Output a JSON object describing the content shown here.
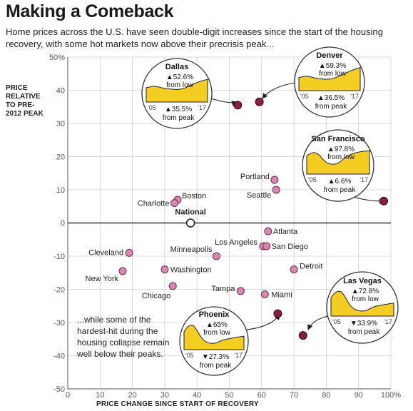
{
  "header": {
    "title": "Making a Comeback",
    "subtitle": "Home prices across the U.S. have seen double-digit increases since the start of the housing recovery, with some hot markets now above their precrisis peak..."
  },
  "note": "...while some of the hardest-hit during the housing collapse remain well below their peaks.",
  "colors": {
    "marker_pink": "#d889b0",
    "marker_dark": "#8a1f3f",
    "area_yellow": "#f3cd21",
    "grid": "#cfcfcf"
  },
  "chart_data": {
    "type": "scatter",
    "xlabel": "PRICE CHANGE SINCE START OF RECOVERY",
    "ylabel": "PRICE RELATIVE TO PRE-2012 PEAK",
    "xlim": [
      0,
      100
    ],
    "ylim": [
      -50,
      50
    ],
    "x_ticks": [
      "0",
      "10",
      "20",
      "30",
      "40",
      "50",
      "60",
      "70",
      "80",
      "90",
      "100%"
    ],
    "y_ticks": [
      "50%",
      "40",
      "30",
      "20",
      "10",
      "0",
      "-10",
      "-20",
      "-30",
      "-40",
      "-50"
    ],
    "grid": true,
    "points": [
      {
        "label": "National",
        "x": 38,
        "y": 0,
        "style": "national"
      },
      {
        "label": "Boston",
        "x": 34,
        "y": 7,
        "style": "pink"
      },
      {
        "label": "Charlotte",
        "x": 33,
        "y": 6,
        "style": "pink"
      },
      {
        "label": "Portland",
        "x": 64,
        "y": 13,
        "style": "pink"
      },
      {
        "label": "Seattle",
        "x": 64.5,
        "y": 10,
        "style": "pink"
      },
      {
        "label": "Atlanta",
        "x": 62,
        "y": -2.5,
        "style": "pink"
      },
      {
        "label": "Los Angeles",
        "x": 60.5,
        "y": -7,
        "style": "pink"
      },
      {
        "label": "San Diego",
        "x": 61.5,
        "y": -7,
        "style": "pink"
      },
      {
        "label": "Cleveland",
        "x": 19,
        "y": -9,
        "style": "pink"
      },
      {
        "label": "Minneapolis",
        "x": 46,
        "y": -10,
        "style": "pink"
      },
      {
        "label": "Washington",
        "x": 30,
        "y": -14,
        "style": "pink"
      },
      {
        "label": "New York",
        "x": 17,
        "y": -14.5,
        "style": "pink"
      },
      {
        "label": "Detroit",
        "x": 70,
        "y": -14,
        "style": "pink"
      },
      {
        "label": "Chicago",
        "x": 32.5,
        "y": -19,
        "style": "pink"
      },
      {
        "label": "Tampa",
        "x": 53.5,
        "y": -20.5,
        "style": "pink"
      },
      {
        "label": "Miami",
        "x": 61,
        "y": -21.5,
        "style": "pink"
      },
      {
        "label": "Dallas",
        "x": 52.6,
        "y": 35.5,
        "style": "dark"
      },
      {
        "label": "Denver",
        "x": 59.3,
        "y": 36.5,
        "style": "dark"
      },
      {
        "label": "San Francisco",
        "x": 97.8,
        "y": 6.6,
        "style": "dark"
      },
      {
        "label": "Phoenix",
        "x": 65,
        "y": -27.3,
        "style": "dark"
      },
      {
        "label": "Las Vegas",
        "x": 72.8,
        "y": -33.9,
        "style": "dark"
      }
    ],
    "insets": [
      {
        "city": "Dallas",
        "from_low": "▲52.6%",
        "from_peak": "▲35.5%",
        "from_low_label": "from low",
        "from_peak_label": "from peak",
        "year_start": "'05",
        "year_end": "'17",
        "series": [
          0.48,
          0.5,
          0.53,
          0.52,
          0.5,
          0.47,
          0.45,
          0.44,
          0.43,
          0.42,
          0.42,
          0.44,
          0.47,
          0.52,
          0.57,
          0.62,
          0.66,
          0.7,
          0.73,
          0.76
        ]
      },
      {
        "city": "Denver",
        "from_low": "▲59.3%",
        "from_peak": "▲36.5%",
        "from_low_label": "from low",
        "from_peak_label": "from peak",
        "year_start": "'05",
        "year_end": "'17",
        "series": [
          0.44,
          0.46,
          0.48,
          0.47,
          0.45,
          0.42,
          0.4,
          0.39,
          0.38,
          0.38,
          0.39,
          0.42,
          0.46,
          0.51,
          0.56,
          0.61,
          0.66,
          0.7,
          0.74,
          0.77
        ]
      },
      {
        "city": "San Francisco",
        "from_low": "▲97.8%",
        "from_peak": "▲6.6%",
        "from_low_label": "from low",
        "from_peak_label": "from peak",
        "year_start": "'05",
        "year_end": "'17",
        "series": [
          0.62,
          0.68,
          0.72,
          0.7,
          0.62,
          0.48,
          0.38,
          0.34,
          0.33,
          0.34,
          0.4,
          0.5,
          0.58,
          0.64,
          0.68,
          0.72,
          0.74,
          0.76,
          0.77,
          0.78
        ]
      },
      {
        "city": "Phoenix",
        "from_low": "▲65%",
        "from_peak": "▼27.3%",
        "from_low_label": "from low",
        "from_peak_label": "from peak",
        "year_start": "'05",
        "year_end": "'17",
        "series": [
          0.6,
          0.75,
          0.82,
          0.8,
          0.66,
          0.48,
          0.34,
          0.26,
          0.22,
          0.21,
          0.22,
          0.26,
          0.31,
          0.34,
          0.36,
          0.38,
          0.4,
          0.42,
          0.43,
          0.45
        ]
      },
      {
        "city": "Las Vegas",
        "from_low": "▲72.8%",
        "from_peak": "▼33.9%",
        "from_low_label": "from low",
        "from_peak_label": "from peak",
        "year_start": "'05",
        "year_end": "'17",
        "series": [
          0.62,
          0.76,
          0.83,
          0.82,
          0.7,
          0.5,
          0.33,
          0.24,
          0.19,
          0.17,
          0.17,
          0.2,
          0.26,
          0.31,
          0.34,
          0.36,
          0.38,
          0.4,
          0.42,
          0.43
        ]
      }
    ]
  }
}
